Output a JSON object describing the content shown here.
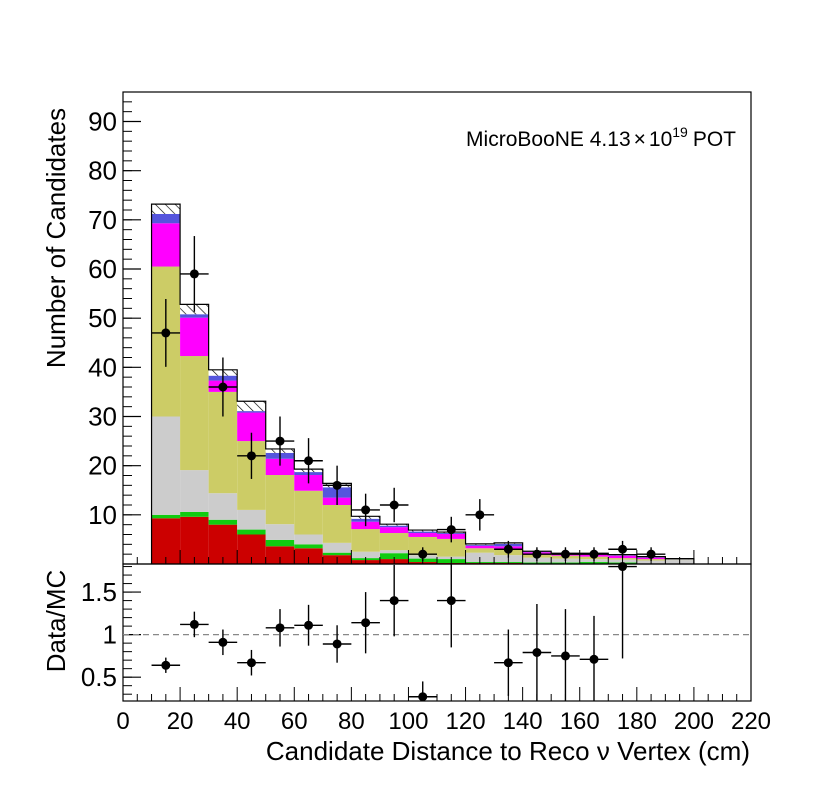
{
  "chart_data": [
    {
      "type": "bar",
      "stacked": true,
      "ylabel": "Number of Candidates",
      "annotation": {
        "prefix": "MicroBooNE 4.13",
        "times": "×",
        "base": "10",
        "exponent": "19",
        "suffix": "POT"
      },
      "xlim": [
        0,
        220
      ],
      "ylim": [
        0,
        96
      ],
      "yticks": [
        "10",
        "20",
        "30",
        "40",
        "50",
        "60",
        "70",
        "80",
        "90"
      ],
      "bin_edges": [
        10,
        20,
        30,
        40,
        50,
        60,
        70,
        80,
        90,
        100,
        110,
        120,
        130,
        140,
        150,
        160,
        170,
        180,
        190,
        200
      ],
      "series": [
        {
          "name": "red",
          "color": "#cc0000",
          "values": [
            9.3,
            9.6,
            8.0,
            6.0,
            3.6,
            3.2,
            1.8,
            0.8,
            1.0,
            0.4,
            0.2,
            0.2,
            0.2,
            0.1,
            0.1,
            0.1,
            0.1,
            0.0,
            0.0
          ]
        },
        {
          "name": "green",
          "color": "#10cc10",
          "values": [
            0.7,
            1.0,
            1.0,
            1.0,
            1.3,
            0.8,
            0.5,
            0.4,
            1.2,
            0.7,
            0.8,
            0.2,
            0.2,
            0.2,
            0.2,
            0.3,
            0.2,
            0.1,
            0.0
          ]
        },
        {
          "name": "grey",
          "color": "#cccccc",
          "values": [
            20.0,
            8.5,
            5.4,
            4.0,
            3.2,
            2.0,
            2.0,
            1.3,
            0.6,
            0.7,
            0.5,
            1.9,
            1.4,
            1.0,
            0.8,
            0.6,
            0.6,
            0.6,
            0.8
          ]
        },
        {
          "name": "olive",
          "color": "#cccc66",
          "values": [
            30.5,
            23.2,
            20.6,
            14.0,
            10.0,
            8.9,
            7.7,
            4.6,
            3.5,
            3.7,
            3.6,
            0.9,
            1.1,
            0.6,
            0.6,
            0.5,
            0.3,
            0.3,
            0.1
          ]
        },
        {
          "name": "magenta",
          "color": "#ff00ff",
          "values": [
            8.8,
            7.8,
            2.3,
            5.8,
            3.3,
            3.2,
            1.5,
            1.5,
            1.2,
            0.8,
            1.0,
            0.5,
            0.7,
            0.5,
            0.3,
            0.5,
            0.5,
            0.3,
            0.0
          ]
        },
        {
          "name": "blue",
          "color": "#5555dd",
          "values": [
            1.9,
            0.7,
            1.0,
            0.3,
            1.2,
            0.6,
            2.1,
            0.6,
            0.3,
            0.3,
            0.2,
            0.2,
            0.5,
            0.1,
            0.1,
            0.1,
            0.1,
            0.1,
            0.1
          ]
        },
        {
          "name": "hatched",
          "color": "#000000",
          "hatched": true,
          "values": [
            2.0,
            2.0,
            1.2,
            2.0,
            0.8,
            0.6,
            0.8,
            0.5,
            0.3,
            0.3,
            0.2,
            0.2,
            0.2,
            0.1,
            0.1,
            0.1,
            0.1,
            0.1,
            0.1
          ]
        }
      ],
      "data_points": {
        "x": [
          15,
          25,
          35,
          45,
          55,
          65,
          75,
          85,
          95,
          105,
          115,
          125,
          135,
          145,
          155,
          165,
          175,
          185
        ],
        "y": [
          47,
          59,
          36,
          22,
          25,
          21,
          16,
          11,
          12,
          2,
          7,
          10,
          3,
          2,
          2,
          2,
          3,
          2
        ],
        "yerr": [
          6.9,
          7.7,
          6.0,
          4.7,
          5.0,
          4.6,
          4.0,
          3.3,
          3.5,
          1.4,
          2.6,
          3.2,
          1.7,
          1.4,
          1.4,
          1.4,
          1.7,
          1.4
        ]
      }
    },
    {
      "type": "scatter",
      "ylabel": "Data/MC",
      "xlabel": "Candidate Distance to Reco ν Vertex (cm)",
      "xlim": [
        0,
        220
      ],
      "ylim": [
        0.22,
        1.83
      ],
      "xticks": [
        "0",
        "20",
        "40",
        "60",
        "80",
        "100",
        "120",
        "140",
        "160",
        "180",
        "200",
        "220"
      ],
      "yticks": [
        "0.5",
        "1",
        "1.5"
      ],
      "reference_line": 1,
      "points": {
        "x": [
          15,
          25,
          35,
          45,
          55,
          65,
          75,
          85,
          95,
          105,
          115,
          135,
          145,
          155,
          165,
          175
        ],
        "y": [
          0.64,
          1.12,
          0.91,
          0.67,
          1.08,
          1.11,
          0.89,
          1.14,
          1.4,
          0.27,
          1.4,
          0.67,
          0.79,
          0.75,
          0.71,
          1.8
        ],
        "yerr": [
          0.09,
          0.15,
          0.15,
          0.15,
          0.22,
          0.24,
          0.22,
          0.36,
          0.42,
          0.18,
          0.55,
          0.39,
          0.57,
          0.55,
          0.51,
          1.08
        ]
      }
    }
  ]
}
